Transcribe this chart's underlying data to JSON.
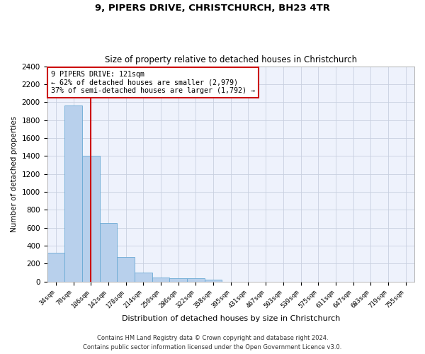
{
  "title1": "9, PIPERS DRIVE, CHRISTCHURCH, BH23 4TR",
  "title2": "Size of property relative to detached houses in Christchurch",
  "xlabel": "Distribution of detached houses by size in Christchurch",
  "ylabel": "Number of detached properties",
  "bar_color": "#b8d0ec",
  "bar_edge_color": "#6aaad4",
  "categories": [
    "34sqm",
    "70sqm",
    "106sqm",
    "142sqm",
    "178sqm",
    "214sqm",
    "250sqm",
    "286sqm",
    "322sqm",
    "358sqm",
    "395sqm",
    "431sqm",
    "467sqm",
    "503sqm",
    "539sqm",
    "575sqm",
    "611sqm",
    "647sqm",
    "683sqm",
    "719sqm",
    "755sqm"
  ],
  "values": [
    325,
    1960,
    1400,
    650,
    275,
    100,
    48,
    40,
    35,
    22,
    0,
    0,
    0,
    0,
    0,
    0,
    0,
    0,
    0,
    0,
    0
  ],
  "ylim": [
    0,
    2400
  ],
  "yticks": [
    0,
    200,
    400,
    600,
    800,
    1000,
    1200,
    1400,
    1600,
    1800,
    2000,
    2200,
    2400
  ],
  "annotation_line1": "9 PIPERS DRIVE: 121sqm",
  "annotation_line2": "← 62% of detached houses are smaller (2,979)",
  "annotation_line3": "37% of semi-detached houses are larger (1,792) →",
  "vline_bar_index": 2,
  "vline_color": "#cc0000",
  "footer1": "Contains HM Land Registry data © Crown copyright and database right 2024.",
  "footer2": "Contains public sector information licensed under the Open Government Licence v3.0.",
  "bg_color": "#eef2fc",
  "grid_color": "#c8d0e0"
}
